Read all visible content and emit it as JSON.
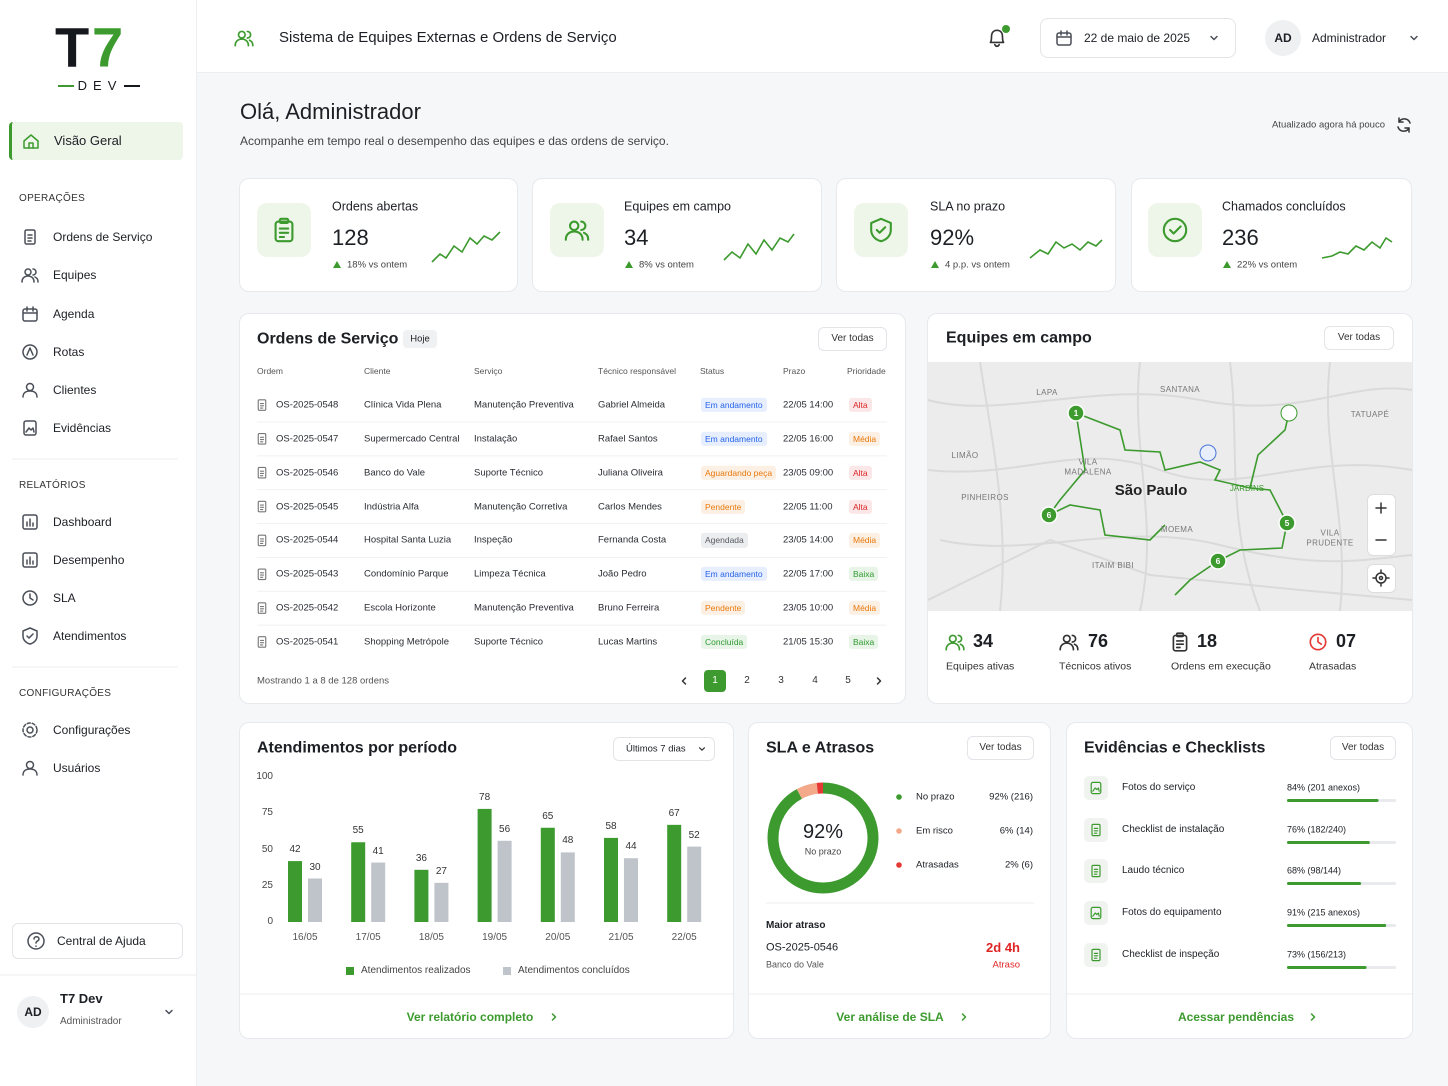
{
  "sidebar": {
    "logo_parts": [
      "T",
      "7"
    ],
    "logo_sub": "DEV",
    "main_item": "Visão Geral",
    "sections": [
      {
        "title": "OPERAÇÕES",
        "items": [
          "Ordens de Serviço",
          "Equipes",
          "Agenda",
          "Rotas",
          "Clientes",
          "Evidências"
        ]
      },
      {
        "title": "RELATÓRIOS",
        "items": [
          "Dashboard",
          "Desempenho",
          "SLA",
          "Atendimentos"
        ]
      },
      {
        "title": "CONFIGURAÇÕES",
        "items": [
          "Configurações",
          "Usuários"
        ]
      }
    ],
    "help": "Central de Ajuda",
    "user": {
      "initials": "AD",
      "name": "T7 Dev",
      "role": "Administrador"
    }
  },
  "header": {
    "title": "Sistema de Equipes Externas e Ordens de Serviço",
    "date": "22 de maio de 2025",
    "user_initials": "AD",
    "user_name": "Administrador"
  },
  "greeting": {
    "title": "Olá, Administrador",
    "subtitle": "Acompanhe em tempo real o desempenho das equipes e das ordens de serviço.",
    "updated": "Atualizado agora há pouco"
  },
  "kpis": [
    {
      "label": "Ordens abertas",
      "value": 128,
      "delta": "18% vs ontem"
    },
    {
      "label": "Equipes em campo",
      "value": 34,
      "delta": "8% vs ontem"
    },
    {
      "label": "SLA no prazo",
      "value": "92%",
      "delta": "4 p.p. vs ontem"
    },
    {
      "label": "Chamados concluídos",
      "value": 236,
      "delta": "22% vs ontem"
    }
  ],
  "orders": {
    "title": "Ordens de Serviço",
    "badge": "Hoje",
    "action": "Ver todas",
    "columns": [
      "Ordem",
      "Cliente",
      "Serviço",
      "Técnico responsável",
      "Status",
      "Prazo",
      "Prioridade"
    ],
    "rows": [
      {
        "cells": [
          "OS-2025-0548",
          "Clínica Vida Plena",
          "Manutenção Preventiva",
          "Gabriel Almeida",
          "Em andamento",
          "22/05 14:00",
          "Alta"
        ],
        "status_color": "#2563eb",
        "priority_color": "#dc2626"
      },
      {
        "cells": [
          "OS-2025-0547",
          "Supermercado Central",
          "Instalação",
          "Rafael Santos",
          "Em andamento",
          "22/05 16:00",
          "Média"
        ],
        "status_color": "#2563eb",
        "priority_color": "#e8780c"
      },
      {
        "cells": [
          "OS-2025-0546",
          "Banco do Vale",
          "Suporte Técnico",
          "Juliana Oliveira",
          "Aguardando peça",
          "23/05 09:00",
          "Alta"
        ],
        "status_color": "#e8780c",
        "priority_color": "#dc2626"
      },
      {
        "cells": [
          "OS-2025-0545",
          "Indústria Alfa",
          "Manutenção Corretiva",
          "Carlos Mendes",
          "Pendente",
          "22/05 11:00",
          "Alta"
        ],
        "status_color": "#e8780c",
        "priority_color": "#dc2626"
      },
      {
        "cells": [
          "OS-2025-0544",
          "Hospital Santa Luzia",
          "Inspeção",
          "Fernanda Costa",
          "Agendada",
          "23/05 14:00",
          "Média"
        ],
        "status_color": "#555b64",
        "priority_color": "#e8780c"
      },
      {
        "cells": [
          "OS-2025-0543",
          "Condomínio Parque",
          "Limpeza Técnica",
          "João Pedro",
          "Em andamento",
          "22/05 17:00",
          "Baixa"
        ],
        "status_color": "#2563eb",
        "priority_color": "#2e9a2e"
      },
      {
        "cells": [
          "OS-2025-0542",
          "Escola Horizonte",
          "Manutenção Preventiva",
          "Bruno Ferreira",
          "Pendente",
          "23/05 10:00",
          "Média"
        ],
        "status_color": "#e8780c",
        "priority_color": "#e8780c"
      },
      {
        "cells": [
          "OS-2025-0541",
          "Shopping Metrópole",
          "Suporte Técnico",
          "Lucas Martins",
          "Concluída",
          "21/05 15:30",
          "Baixa"
        ],
        "status_color": "#2e9a2e",
        "priority_color": "#2e9a2e"
      }
    ],
    "footer": "Mostrando 1 a 8 de 128 ordens",
    "pages": [
      1,
      2,
      3,
      4,
      5
    ]
  },
  "field_teams": {
    "title": "Equipes em campo",
    "action": "Ver todas",
    "map_labels": [
      "LAPA",
      "SANTANA",
      "TATUAPÉ",
      "LIMÃO",
      "VILA MADALENA",
      "PINHEIROS",
      "São Paulo",
      "JARDINS",
      "MOEMA",
      "VILA PRUDENTE",
      "ITAIM BIBI"
    ],
    "markers": [
      "1",
      "6",
      "5",
      "6"
    ],
    "stats": [
      {
        "value": 34,
        "label": "Equipes ativas"
      },
      {
        "value": 76,
        "label": "Técnicos ativos"
      },
      {
        "value": 18,
        "label": "Ordens em execução"
      },
      {
        "value": "07",
        "label": "Atrasadas"
      }
    ]
  },
  "attendance_chart": {
    "type": "bar",
    "title": "Atendimentos por período",
    "period": "Últimos 7 dias",
    "categories": [
      "16/05",
      "17/05",
      "18/05",
      "19/05",
      "20/05",
      "21/05",
      "22/05"
    ],
    "series": [
      {
        "name": "Atendimentos realizados",
        "color": "#3c9a2e",
        "values": [
          42,
          55,
          36,
          78,
          65,
          58,
          67
        ]
      },
      {
        "name": "Atendimentos concluídos",
        "color": "#bfc3ca",
        "values": [
          30,
          41,
          27,
          56,
          48,
          44,
          52
        ]
      }
    ],
    "ylim": [
      0,
      100
    ],
    "yticks": [
      0,
      25,
      50,
      75,
      100
    ],
    "link": "Ver relatório completo"
  },
  "sla": {
    "title": "SLA e Atrasos",
    "action": "Ver todas",
    "chart": {
      "type": "pie",
      "categories": [
        "No prazo",
        "Em risco",
        "Atrasadas"
      ],
      "values": [
        92,
        6,
        2
      ],
      "value_labels": [
        "92% (216)",
        "6% (14)",
        "2% (6)"
      ],
      "colors": [
        "#3c9a2e",
        "#f4a98a",
        "#e53935"
      ],
      "center_value": "92%"
    },
    "worst": {
      "label": "Maior atraso",
      "order": "OS-2025-0546",
      "client": "Banco do Vale",
      "time": "2d 4h",
      "status": "Atraso"
    },
    "link": "Ver análise de SLA"
  },
  "evidence": {
    "title": "Evidências e Checklists",
    "action": "Ver todas",
    "xlim": [
      0,
      100
    ],
    "items": [
      {
        "name": "Fotos do serviço",
        "value": 84,
        "value_label": "84% (201 anexos)"
      },
      {
        "name": "Checklist de instalação",
        "value": 76,
        "value_label": "76% (182/240)"
      },
      {
        "name": "Laudo técnico",
        "value": 68,
        "value_label": "68% (98/144)"
      },
      {
        "name": "Fotos do equipamento",
        "value": 91,
        "value_label": "91% (215 anexos)"
      },
      {
        "name": "Checklist de inspeção",
        "value": 73,
        "value_label": "73% (156/213)"
      }
    ],
    "link": "Acessar pendências"
  }
}
